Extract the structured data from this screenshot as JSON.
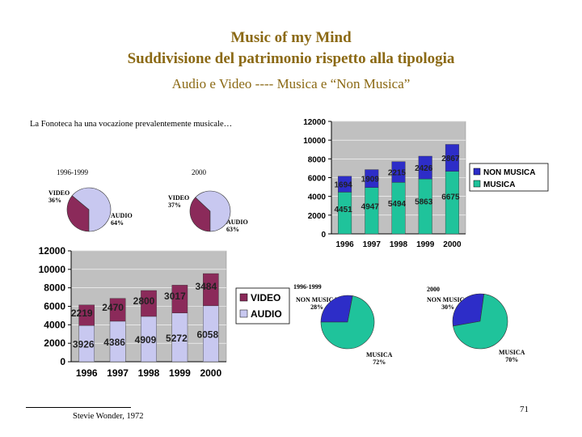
{
  "header": {
    "title": "Music of my Mind",
    "subtitle": "Suddivisione del patrimonio rispetto alla tipologia",
    "line3": "Audio e Video  ----  Musica e “Non Musica”"
  },
  "intro": "La Fonoteca ha una vocazione prevalentemente musicale…",
  "footnote": "Stevie Wonder, 1972",
  "page_number": "71",
  "colors": {
    "audio": "#c8c8f0",
    "video": "#8b2a5a",
    "musica": "#1fc39b",
    "non_musica": "#2d2dc8",
    "plot_bg": "#c0c0c0"
  },
  "chart_data": [
    {
      "type": "pie",
      "year_label": "1996-1999",
      "slices": [
        {
          "label": "VIDEO",
          "pct_label": "36%",
          "value": 36
        },
        {
          "label": "AUDIO",
          "pct_label": "64%",
          "value": 64
        }
      ]
    },
    {
      "type": "pie",
      "year_label": "2000",
      "slices": [
        {
          "label": "VIDEO",
          "pct_label": "37%",
          "value": 37
        },
        {
          "label": "AUDIO",
          "pct_label": "63%",
          "value": 63
        }
      ]
    },
    {
      "type": "bar",
      "stacked": true,
      "categories": [
        "1996",
        "1997",
        "1998",
        "1999",
        "2000"
      ],
      "series": [
        {
          "name": "AUDIO",
          "values": [
            3926,
            4386,
            4909,
            5272,
            6058
          ]
        },
        {
          "name": "VIDEO",
          "values": [
            2219,
            2470,
            2800,
            3017,
            3484
          ]
        }
      ],
      "ylim": [
        0,
        12000
      ],
      "yticks": [
        "0",
        "2000",
        "4000",
        "6000",
        "8000",
        "10000",
        "12000"
      ],
      "legend": "right",
      "grid": true
    },
    {
      "type": "bar",
      "stacked": true,
      "categories": [
        "1996",
        "1997",
        "1998",
        "1999",
        "2000"
      ],
      "series": [
        {
          "name": "MUSICA",
          "values": [
            4451,
            4947,
            5494,
            5863,
            6675
          ]
        },
        {
          "name": "NON MUSICA",
          "values": [
            1694,
            1909,
            2215,
            2426,
            2867
          ]
        }
      ],
      "ylim": [
        0,
        12000
      ],
      "yticks": [
        "0",
        "2000",
        "4000",
        "6000",
        "8000",
        "10000",
        "12000"
      ],
      "legend": "right",
      "grid": true
    },
    {
      "type": "pie",
      "year_label": "1996-1999",
      "slices": [
        {
          "label": "NON MUSICA",
          "pct_label": "28%",
          "value": 28
        },
        {
          "label": "MUSICA",
          "pct_label": "72%",
          "value": 72
        }
      ]
    },
    {
      "type": "pie",
      "year_label": "2000",
      "slices": [
        {
          "label": "NON MUSICA",
          "pct_label": "30%",
          "value": 30
        },
        {
          "label": "MUSICA",
          "pct_label": "70%",
          "value": 70
        }
      ]
    }
  ]
}
